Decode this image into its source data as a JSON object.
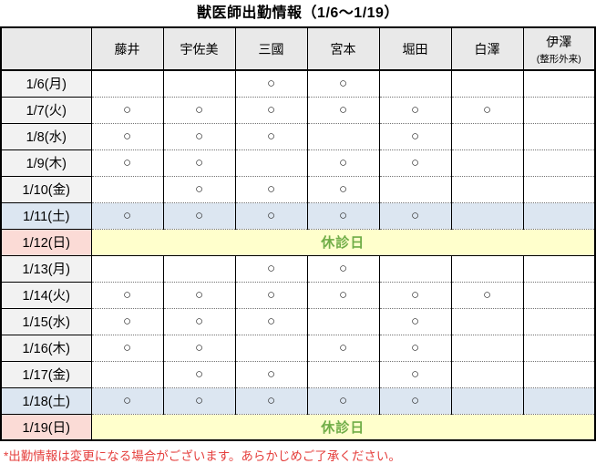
{
  "title": "獣医師出勤情報（1/6～1/19）",
  "footnote": "*出勤情報は変更になる場合がございます。あらかじめご了承ください。",
  "closed_label": "休診日",
  "mark_symbol": "○",
  "colors": {
    "header_bg": "#e9e9e9",
    "weekday_date_bg": "#f2f2f2",
    "saturday_row_bg": "#dce6f1",
    "sunday_date_bg": "#fbdbd6",
    "closed_bg": "#ffffcc",
    "closed_text": "#70ad47",
    "footnote_text": "#e5403e"
  },
  "columns": {
    "labels": [
      "藤井",
      "宇佐美",
      "三國",
      "宮本",
      "堀田",
      "白澤",
      "伊澤"
    ],
    "last_note": "(整形外来)"
  },
  "rows": [
    {
      "date": "1/6(月)",
      "type": "weekday",
      "marks": [
        "",
        "",
        "○",
        "○",
        "",
        "",
        ""
      ]
    },
    {
      "date": "1/7(火)",
      "type": "weekday",
      "marks": [
        "○",
        "○",
        "○",
        "○",
        "○",
        "○",
        ""
      ]
    },
    {
      "date": "1/8(水)",
      "type": "weekday",
      "marks": [
        "○",
        "○",
        "○",
        "",
        "○",
        "",
        ""
      ]
    },
    {
      "date": "1/9(木)",
      "type": "weekday",
      "marks": [
        "○",
        "○",
        "",
        "○",
        "○",
        "",
        ""
      ]
    },
    {
      "date": "1/10(金)",
      "type": "weekday",
      "marks": [
        "",
        "○",
        "○",
        "○",
        "",
        "",
        ""
      ]
    },
    {
      "date": "1/11(土)",
      "type": "saturday",
      "marks": [
        "○",
        "○",
        "○",
        "○",
        "○",
        "",
        ""
      ]
    },
    {
      "date": "1/12(日)",
      "type": "closed"
    },
    {
      "date": "1/13(月)",
      "type": "weekday",
      "marks": [
        "",
        "",
        "○",
        "○",
        "",
        "",
        ""
      ]
    },
    {
      "date": "1/14(火)",
      "type": "weekday",
      "marks": [
        "○",
        "○",
        "○",
        "○",
        "○",
        "○",
        ""
      ]
    },
    {
      "date": "1/15(水)",
      "type": "weekday",
      "marks": [
        "○",
        "○",
        "○",
        "",
        "○",
        "",
        ""
      ]
    },
    {
      "date": "1/16(木)",
      "type": "weekday",
      "marks": [
        "○",
        "○",
        "",
        "○",
        "○",
        "",
        ""
      ]
    },
    {
      "date": "1/17(金)",
      "type": "weekday",
      "marks": [
        "",
        "○",
        "○",
        "",
        "○",
        "",
        ""
      ]
    },
    {
      "date": "1/18(土)",
      "type": "saturday",
      "marks": [
        "○",
        "○",
        "○",
        "○",
        "○",
        "",
        ""
      ]
    },
    {
      "date": "1/19(日)",
      "type": "closed"
    }
  ]
}
